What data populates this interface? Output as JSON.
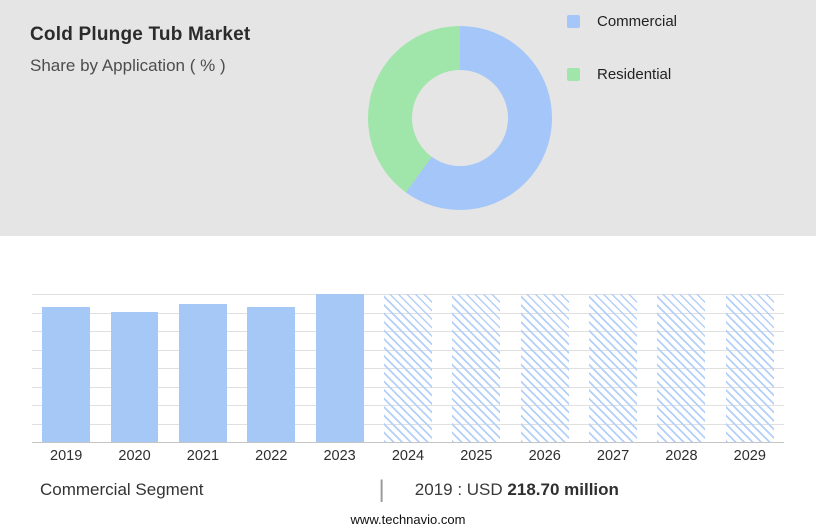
{
  "header": {
    "title": "Cold Plunge Tub Market",
    "subtitle": "Share by Application ( % )"
  },
  "donut": {
    "type": "pie",
    "title": "Share by Application ( % )",
    "segments": [
      {
        "label": "Commercial",
        "value": 60,
        "color": "#a4c6f8"
      },
      {
        "label": "Residential",
        "value": 40,
        "color": "#a0e5a9"
      }
    ],
    "hole_color": "#e6e5e5",
    "legend_position": "right"
  },
  "chart_data": {
    "type": "bar",
    "categories": [
      "2019",
      "2020",
      "2021",
      "2022",
      "2023",
      "2024",
      "2025",
      "2026",
      "2027",
      "2028",
      "2029"
    ],
    "values": [
      91,
      88,
      93,
      91,
      100,
      100,
      100,
      100,
      100,
      100,
      100
    ],
    "value_unit": "relative bar height %, y-axis unlabeled",
    "historical_years": [
      "2019",
      "2020",
      "2021",
      "2022",
      "2023"
    ],
    "forecast_years": [
      "2024",
      "2025",
      "2026",
      "2027",
      "2028",
      "2029"
    ],
    "known_values_usd_million": {
      "2019": 218.7
    },
    "bar_color": "#a6c8f7",
    "forecast_pattern": "diagonal-hatch",
    "grid": true,
    "xlabel": "",
    "ylabel": ""
  },
  "footer": {
    "segment_label": "Commercial Segment",
    "separator": "|",
    "value_prefix": "2019 : USD",
    "value_bold": "218.70 million",
    "website": "www.technavio.com"
  }
}
